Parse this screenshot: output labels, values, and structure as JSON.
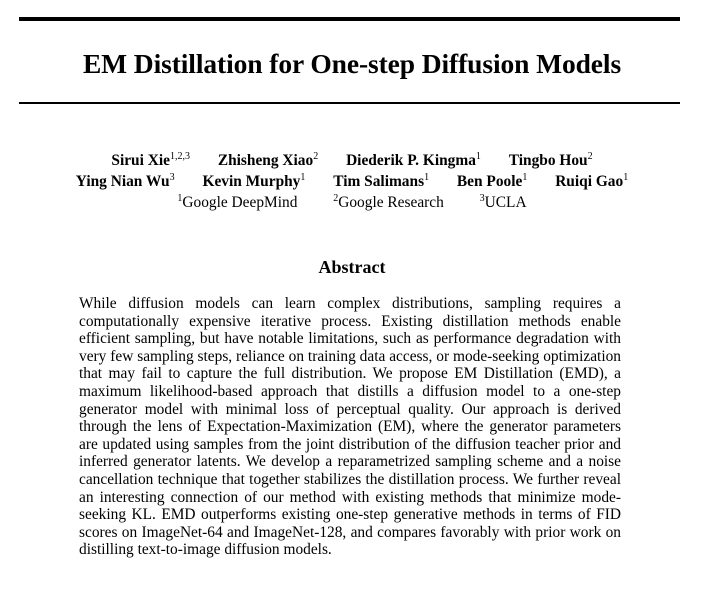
{
  "paper": {
    "title": "EM Distillation for One-step Diffusion Models",
    "authors_line1": [
      {
        "name": "Sirui Xie",
        "aff": "1,2,3"
      },
      {
        "name": "Zhisheng Xiao",
        "aff": "2"
      },
      {
        "name": "Diederik P. Kingma",
        "aff": "1"
      },
      {
        "name": "Tingbo Hou",
        "aff": "2"
      }
    ],
    "authors_line2": [
      {
        "name": "Ying Nian Wu",
        "aff": "3"
      },
      {
        "name": "Kevin Murphy",
        "aff": "1"
      },
      {
        "name": "Tim Salimans",
        "aff": "1"
      },
      {
        "name": "Ben Poole",
        "aff": "1"
      },
      {
        "name": "Ruiqi Gao",
        "aff": "1"
      }
    ],
    "affiliations": [
      {
        "num": "1",
        "name": "Google DeepMind"
      },
      {
        "num": "2",
        "name": "Google Research"
      },
      {
        "num": "3",
        "name": "UCLA"
      }
    ],
    "abstract_heading": "Abstract",
    "abstract_text": "While diffusion models can learn complex distributions, sampling requires a computationally expensive iterative process. Existing distillation methods enable efficient sampling, but have notable limitations, such as performance degradation with very few sampling steps, reliance on training data access, or mode-seeking optimization that may fail to capture the full distribution. We propose EM Distillation (EMD), a maximum likelihood-based approach that distills a diffusion model to a one-step generator model with minimal loss of perceptual quality. Our approach is derived through the lens of Expectation-Maximization (EM), where the generator parameters are updated using samples from the joint distribution of the diffusion teacher prior and inferred generator latents. We develop a reparametrized sampling scheme and a noise cancellation technique that together stabilizes the distillation process. We further reveal an interesting connection of our method with existing methods that minimize mode-seeking KL. EMD outperforms existing one-step generative methods in terms of FID scores on ImageNet-64 and ImageNet-128, and compares favorably with prior work on distilling text-to-image diffusion models."
  }
}
